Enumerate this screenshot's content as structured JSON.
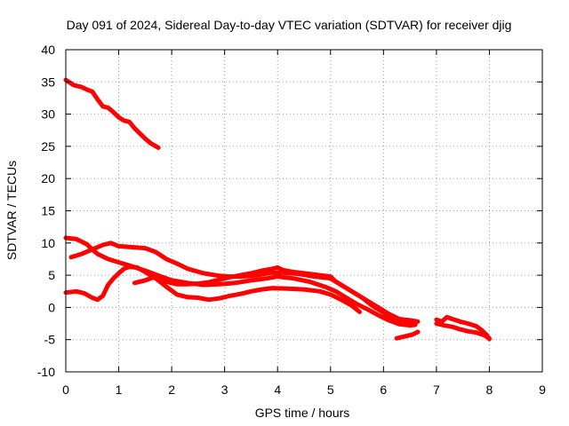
{
  "chart_data": {
    "type": "line",
    "title": "Day 091 of 2024, Sidereal Day-to-day VTEC variation (SDTVAR) for receiver djig",
    "xlabel": "GPS time / hours",
    "ylabel": "SDTVAR / TECUs",
    "xlim": [
      0,
      9
    ],
    "ylim": [
      -10,
      40
    ],
    "xticks": [
      0,
      1,
      2,
      3,
      4,
      5,
      6,
      7,
      8,
      9
    ],
    "yticks": [
      -10,
      -5,
      0,
      5,
      10,
      15,
      20,
      25,
      30,
      35,
      40
    ],
    "xtick_labels": [
      "0",
      "1",
      "2",
      "3",
      "4",
      "5",
      "6",
      "7",
      "8",
      "9"
    ],
    "ytick_labels": [
      "-10",
      "-5",
      "0",
      "5",
      "10",
      "15",
      "20",
      "25",
      "30",
      "35",
      "40"
    ],
    "grid": true,
    "color": "#ff0000",
    "series": [
      {
        "name": "trace-1",
        "points": [
          [
            0.0,
            35.3
          ],
          [
            0.15,
            34.5
          ],
          [
            0.3,
            34.2
          ],
          [
            0.4,
            33.8
          ],
          [
            0.5,
            33.5
          ],
          [
            0.6,
            32.3
          ],
          [
            0.7,
            31.2
          ],
          [
            0.8,
            31.0
          ],
          [
            0.9,
            30.3
          ],
          [
            1.0,
            29.5
          ],
          [
            1.1,
            29.0
          ],
          [
            1.2,
            28.8
          ],
          [
            1.3,
            27.8
          ],
          [
            1.4,
            27.0
          ],
          [
            1.5,
            26.2
          ],
          [
            1.6,
            25.5
          ],
          [
            1.75,
            24.8
          ]
        ]
      },
      {
        "name": "trace-2",
        "points": [
          [
            0.0,
            10.8
          ],
          [
            0.2,
            10.6
          ],
          [
            0.4,
            9.8
          ],
          [
            0.5,
            9.0
          ],
          [
            0.6,
            8.3
          ],
          [
            0.8,
            7.5
          ],
          [
            1.0,
            7.0
          ],
          [
            1.2,
            6.5
          ],
          [
            1.5,
            5.7
          ],
          [
            1.8,
            4.8
          ],
          [
            2.0,
            4.2
          ],
          [
            2.3,
            3.8
          ],
          [
            2.6,
            3.5
          ],
          [
            2.9,
            3.6
          ],
          [
            3.2,
            3.8
          ],
          [
            3.5,
            4.2
          ],
          [
            3.8,
            4.5
          ],
          [
            4.0,
            4.8
          ],
          [
            4.3,
            4.5
          ],
          [
            4.6,
            4.0
          ],
          [
            4.9,
            3.2
          ],
          [
            5.1,
            2.5
          ],
          [
            5.3,
            1.5
          ],
          [
            5.5,
            0.5
          ],
          [
            5.7,
            -0.3
          ],
          [
            5.9,
            -1.2
          ],
          [
            6.1,
            -2.0
          ],
          [
            6.3,
            -2.6
          ],
          [
            6.5,
            -2.8
          ],
          [
            6.6,
            -2.7
          ]
        ]
      },
      {
        "name": "trace-3",
        "points": [
          [
            0.1,
            7.8
          ],
          [
            0.3,
            8.3
          ],
          [
            0.5,
            9.0
          ],
          [
            0.7,
            9.7
          ],
          [
            0.85,
            10.0
          ],
          [
            1.0,
            9.5
          ],
          [
            1.2,
            9.4
          ],
          [
            1.5,
            9.2
          ],
          [
            1.7,
            8.6
          ],
          [
            1.9,
            7.5
          ],
          [
            2.1,
            6.8
          ],
          [
            2.3,
            6.0
          ],
          [
            2.6,
            5.3
          ],
          [
            2.9,
            4.9
          ],
          [
            3.1,
            4.8
          ],
          [
            3.3,
            4.8
          ],
          [
            3.6,
            5.0
          ],
          [
            3.9,
            5.4
          ],
          [
            4.1,
            5.4
          ],
          [
            4.4,
            5.2
          ],
          [
            4.7,
            4.8
          ],
          [
            5.0,
            4.5
          ],
          [
            5.2,
            3.5
          ],
          [
            5.4,
            2.5
          ],
          [
            5.6,
            1.5
          ],
          [
            5.8,
            0.2
          ],
          [
            6.0,
            -0.8
          ],
          [
            6.2,
            -1.8
          ],
          [
            6.4,
            -2.2
          ],
          [
            6.6,
            -2.3
          ]
        ]
      },
      {
        "name": "trace-4",
        "points": [
          [
            0.0,
            2.3
          ],
          [
            0.2,
            2.5
          ],
          [
            0.35,
            2.2
          ],
          [
            0.5,
            1.5
          ],
          [
            0.6,
            1.2
          ],
          [
            0.7,
            1.8
          ],
          [
            0.8,
            3.5
          ],
          [
            0.9,
            4.5
          ],
          [
            1.0,
            5.3
          ],
          [
            1.1,
            6.0
          ],
          [
            1.2,
            6.3
          ],
          [
            1.35,
            6.2
          ],
          [
            1.5,
            5.5
          ],
          [
            1.7,
            4.5
          ],
          [
            1.9,
            3.2
          ],
          [
            2.1,
            2.0
          ],
          [
            2.3,
            1.6
          ],
          [
            2.5,
            1.5
          ],
          [
            2.7,
            1.2
          ],
          [
            2.9,
            1.4
          ],
          [
            3.1,
            1.8
          ],
          [
            3.3,
            2.1
          ],
          [
            3.5,
            2.5
          ],
          [
            3.7,
            2.8
          ],
          [
            3.9,
            3.0
          ],
          [
            4.2,
            2.9
          ],
          [
            4.5,
            2.8
          ],
          [
            4.8,
            2.5
          ],
          [
            5.0,
            2.0
          ],
          [
            5.2,
            1.2
          ],
          [
            5.4,
            0.3
          ],
          [
            5.55,
            -0.7
          ]
        ]
      },
      {
        "name": "trace-5",
        "points": [
          [
            1.3,
            3.8
          ],
          [
            1.5,
            4.2
          ],
          [
            1.7,
            4.8
          ],
          [
            1.9,
            4.0
          ],
          [
            2.1,
            3.6
          ],
          [
            2.3,
            3.6
          ],
          [
            2.5,
            3.7
          ],
          [
            2.7,
            3.9
          ],
          [
            2.9,
            4.3
          ],
          [
            3.1,
            4.7
          ],
          [
            3.3,
            5.0
          ],
          [
            3.5,
            5.3
          ],
          [
            3.7,
            5.7
          ],
          [
            3.9,
            6.0
          ],
          [
            4.0,
            6.2
          ],
          [
            4.1,
            5.8
          ],
          [
            4.3,
            5.5
          ],
          [
            4.5,
            5.3
          ],
          [
            4.8,
            5.0
          ],
          [
            5.0,
            4.8
          ],
          [
            5.1,
            4.0
          ],
          [
            5.3,
            3.0
          ],
          [
            5.5,
            2.0
          ],
          [
            5.7,
            1.0
          ],
          [
            5.9,
            0.0
          ],
          [
            6.1,
            -1.0
          ],
          [
            6.3,
            -1.8
          ],
          [
            6.5,
            -2.0
          ],
          [
            6.65,
            -2.2
          ]
        ]
      },
      {
        "name": "trace-6",
        "points": [
          [
            6.25,
            -4.8
          ],
          [
            6.4,
            -4.5
          ],
          [
            6.55,
            -4.2
          ],
          [
            6.65,
            -3.8
          ]
        ]
      },
      {
        "name": "trace-7",
        "points": [
          [
            7.0,
            -1.9
          ],
          [
            7.1,
            -2.2
          ],
          [
            7.2,
            -1.5
          ],
          [
            7.3,
            -1.8
          ],
          [
            7.45,
            -2.2
          ],
          [
            7.6,
            -2.5
          ],
          [
            7.75,
            -2.9
          ],
          [
            7.85,
            -3.5
          ],
          [
            7.95,
            -4.3
          ],
          [
            8.0,
            -4.9
          ]
        ]
      },
      {
        "name": "trace-8",
        "points": [
          [
            7.0,
            -2.5
          ],
          [
            7.15,
            -2.8
          ],
          [
            7.3,
            -3.0
          ],
          [
            7.45,
            -3.4
          ],
          [
            7.6,
            -3.7
          ],
          [
            7.75,
            -3.9
          ],
          [
            7.9,
            -4.3
          ],
          [
            8.0,
            -4.8
          ]
        ]
      }
    ]
  }
}
